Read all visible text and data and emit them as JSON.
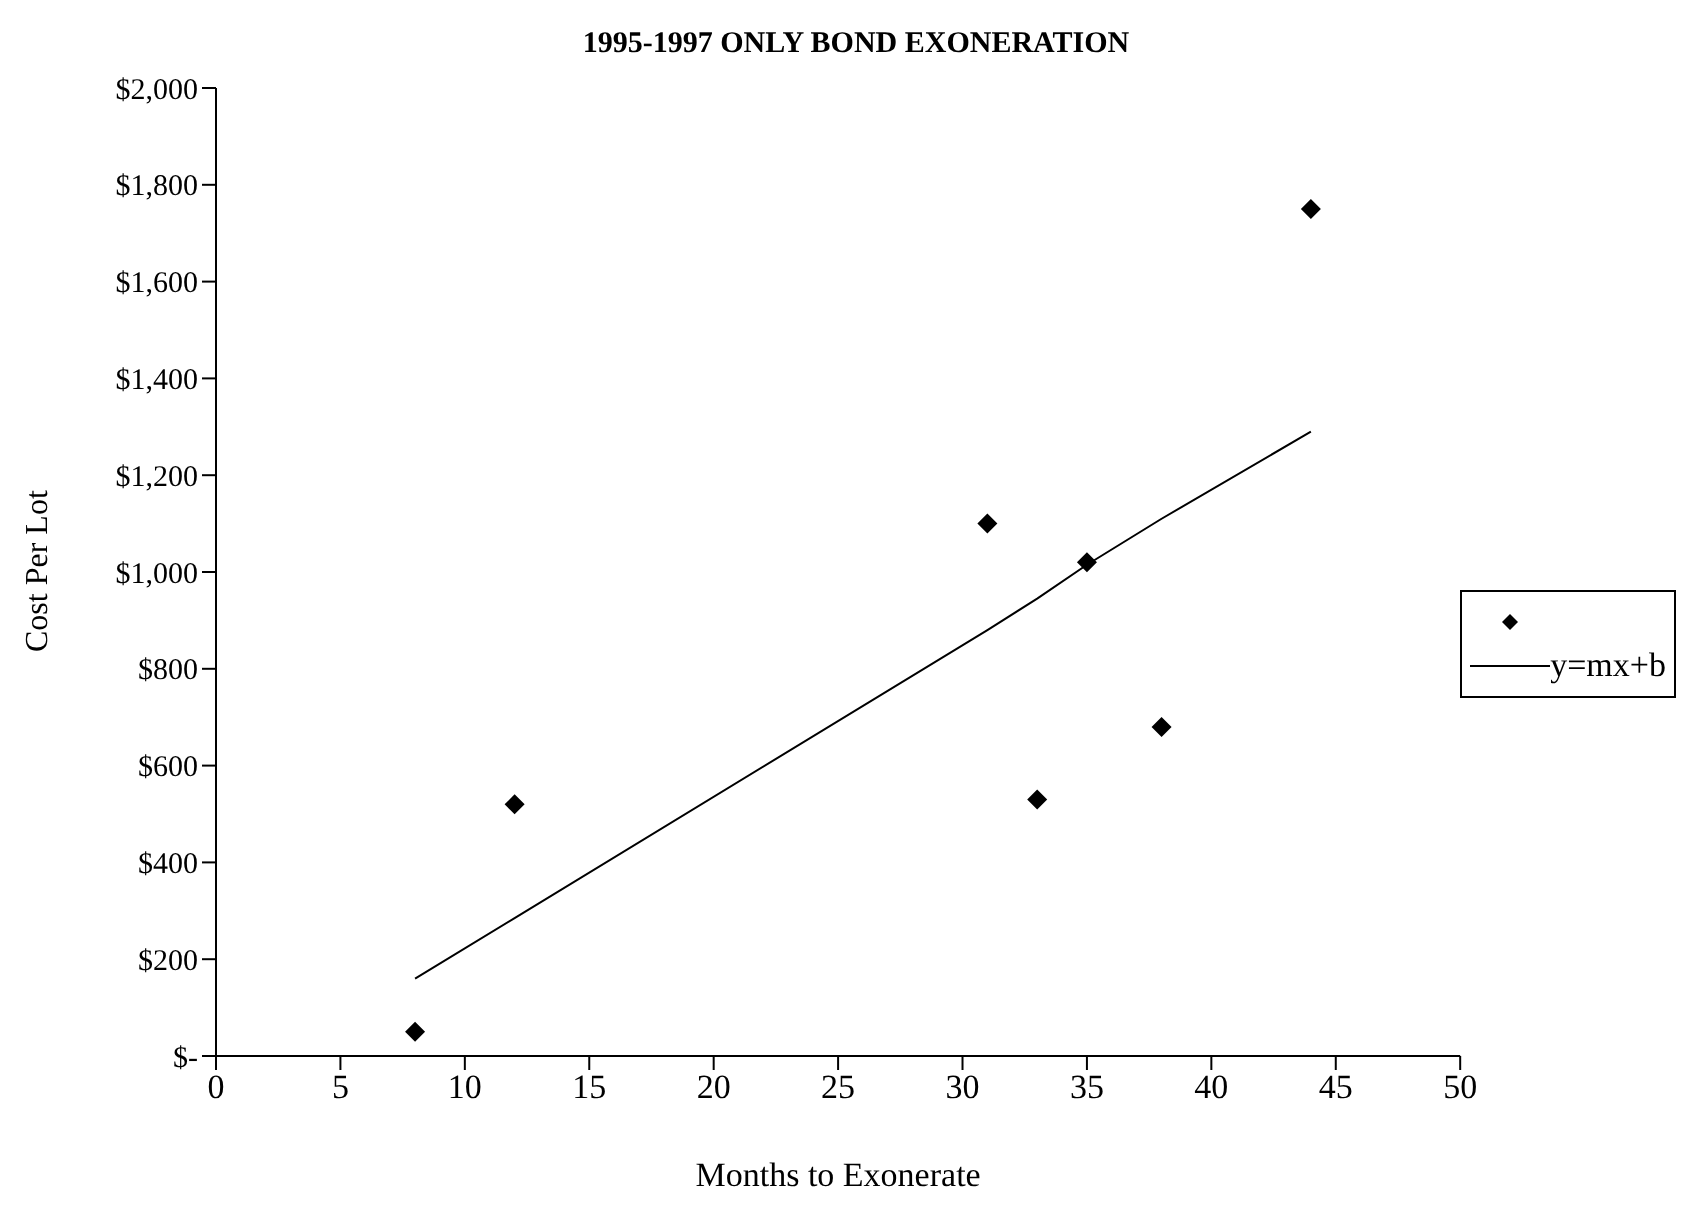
{
  "chart_data": {
    "type": "scatter",
    "title": "1995-1997 ONLY BOND EXONERATION",
    "xlabel": "Months to Exonerate",
    "ylabel": "Cost Per Lot",
    "series": [
      {
        "color": "#000000",
        "marker": "diamond",
        "x": [
          8,
          12,
          31,
          33,
          35,
          38,
          44
        ],
        "values": [
          50,
          520,
          1100,
          530,
          1020,
          680,
          1750
        ]
      },
      {
        "type": "line",
        "name": "y=mx+b",
        "color": "#000000",
        "marker": "none",
        "line_style": "solid",
        "x": [
          8,
          12,
          31,
          33,
          35,
          38,
          44
        ],
        "values": [
          160,
          285,
          880,
          945,
          1015,
          1110,
          1290
        ]
      }
    ],
    "xlim": [
      0,
      50
    ],
    "xticks": [
      0,
      5,
      10,
      15,
      20,
      25,
      30,
      35,
      40,
      45,
      50
    ],
    "ylim": [
      0,
      2000
    ],
    "yticks": [
      {
        "value": 0,
        "label": "$-"
      },
      {
        "value": 200,
        "label": "$200"
      },
      {
        "value": 400,
        "label": "$400"
      },
      {
        "value": 600,
        "label": "$600"
      },
      {
        "value": 800,
        "label": "$800"
      },
      {
        "value": 1000,
        "label": "$1,000"
      },
      {
        "value": 1200,
        "label": "$1,200"
      },
      {
        "value": 1400,
        "label": "$1,400"
      },
      {
        "value": 1600,
        "label": "$1,600"
      },
      {
        "value": 1800,
        "label": "$1,800"
      },
      {
        "value": 2000,
        "label": "$2,000"
      }
    ],
    "grid": false,
    "legend": "right"
  }
}
